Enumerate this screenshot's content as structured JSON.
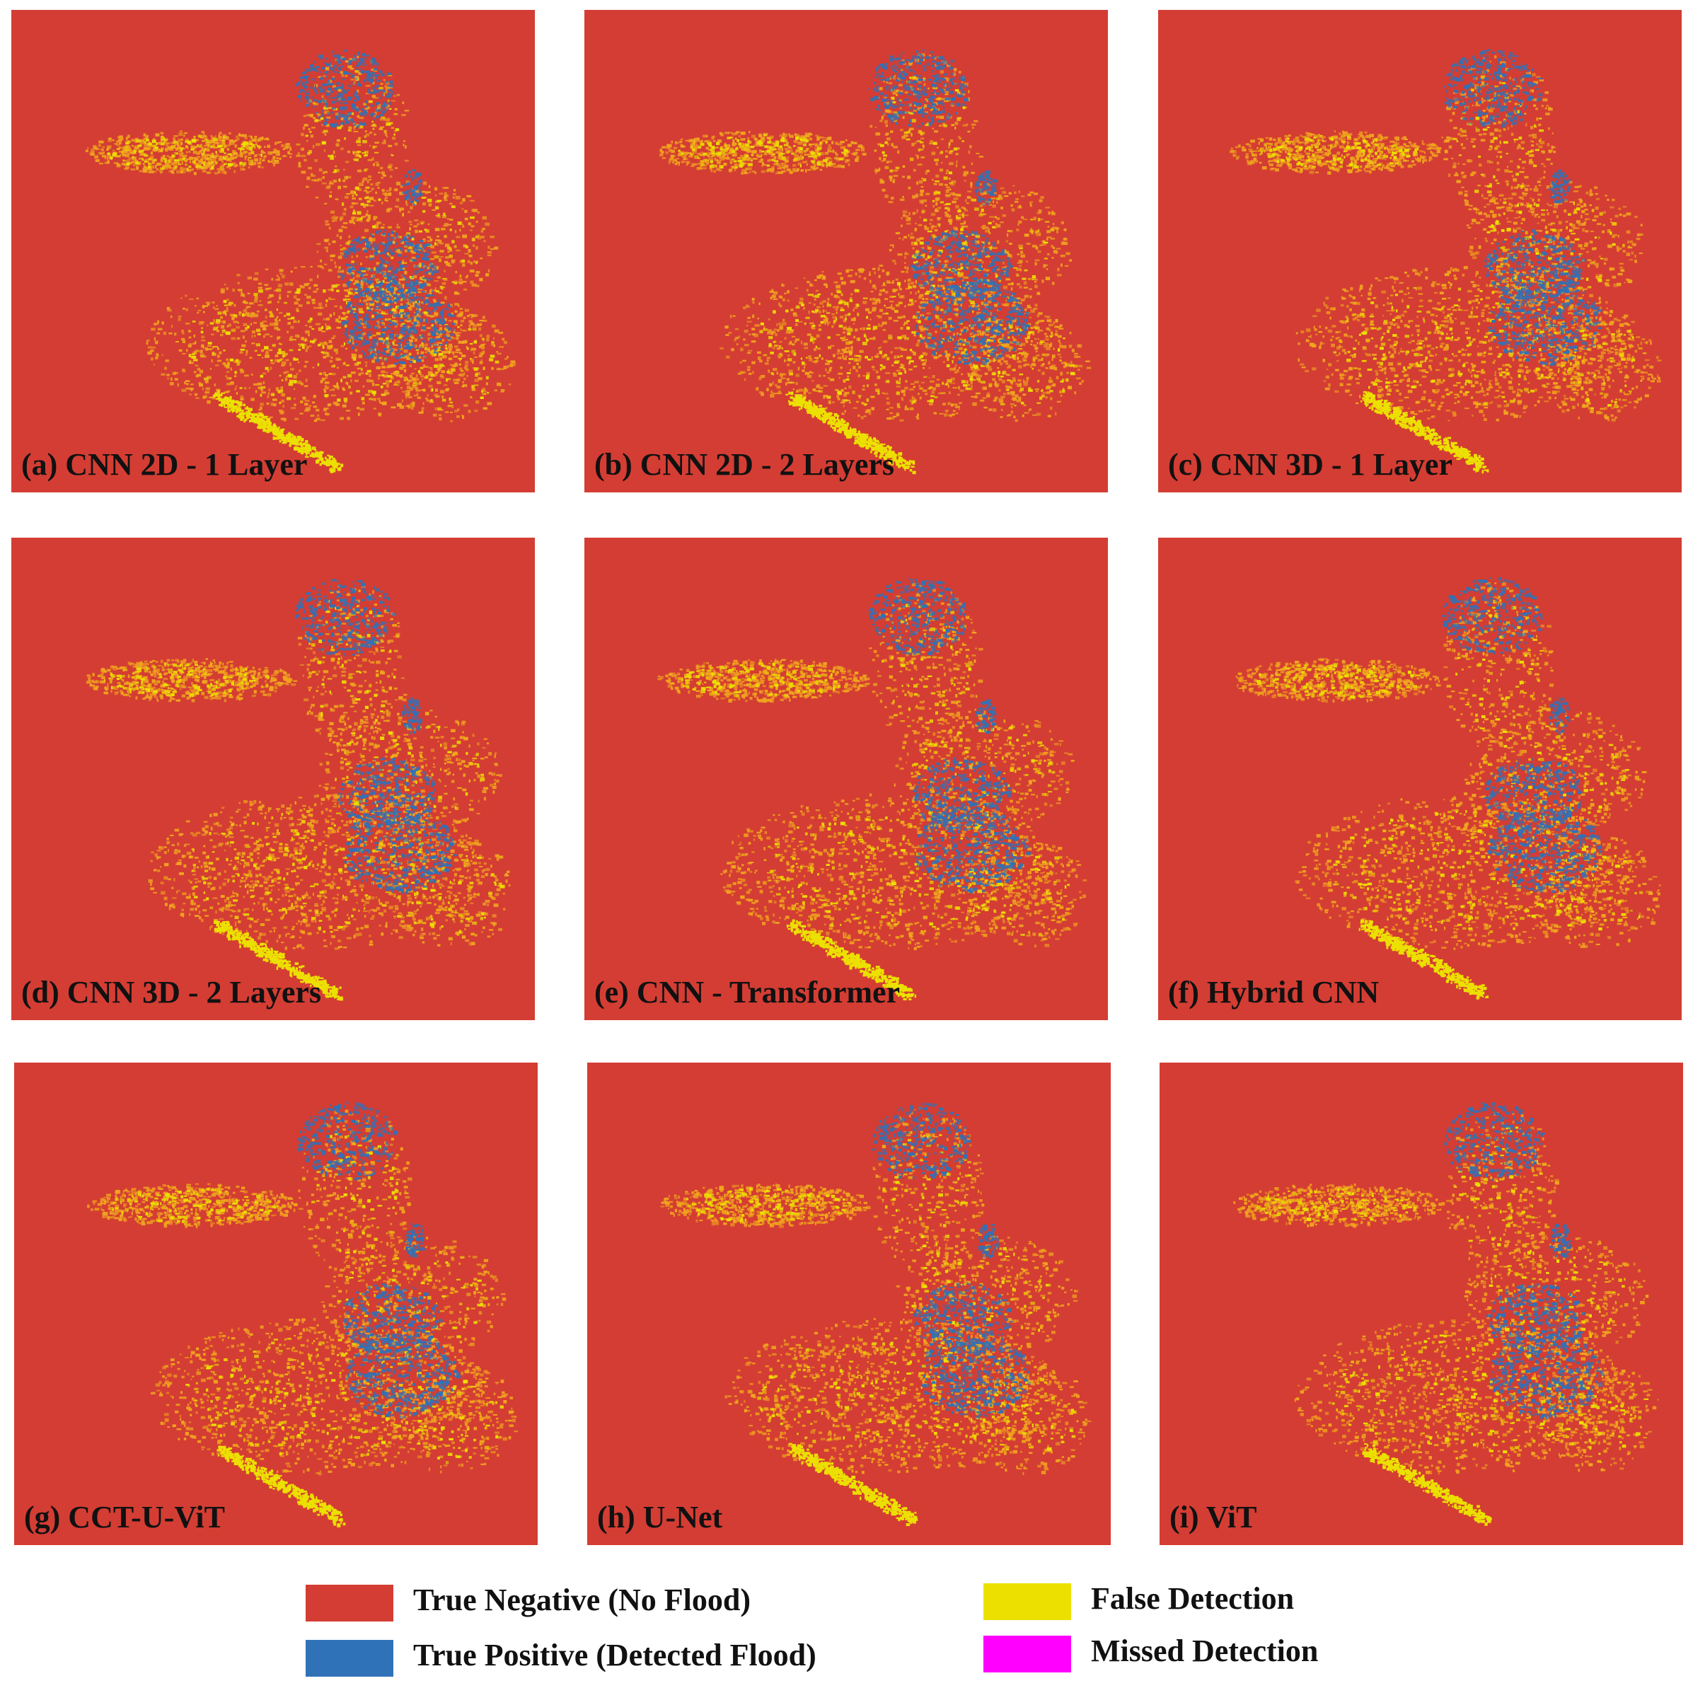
{
  "colors": {
    "true_negative": "#d43d33",
    "true_positive": "#2f72b8",
    "false_detection": "#ece000",
    "missed_detection": "#ff00ff"
  },
  "panels": [
    {
      "label": "(a) CNN 2D - 1 Layer"
    },
    {
      "label": "(b) CNN 2D - 2 Layers"
    },
    {
      "label": "(c) CNN 3D - 1 Layer"
    },
    {
      "label": "(d) CNN 3D - 2 Layers"
    },
    {
      "label": "(e) CNN - Transformer"
    },
    {
      "label": "(f) Hybrid CNN"
    },
    {
      "label": "(g) CCT-U-ViT"
    },
    {
      "label": "(h) U-Net"
    },
    {
      "label": "(i) ViT"
    }
  ],
  "legend": {
    "true_negative": "True Negative (No Flood)",
    "true_positive": "True Positive  (Detected Flood)",
    "false_detection": "False Detection",
    "missed_detection": "Missed Detection"
  }
}
